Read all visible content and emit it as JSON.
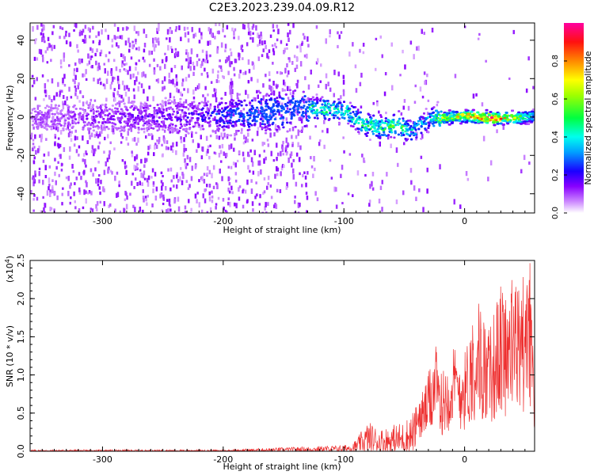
{
  "figure": {
    "title": "C2E3.2023.239.04.09.R12"
  },
  "chart_data": [
    {
      "type": "heatmap",
      "xlabel": "Height of straight line (km)",
      "ylabel": "Frequency (Hz)",
      "xlim": [
        -360,
        58
      ],
      "ylim": [
        -50,
        49
      ],
      "xticks": [
        -300,
        -200,
        -100,
        0
      ],
      "yticks": [
        -40,
        -20,
        0,
        20,
        40
      ],
      "grid": false,
      "description_of_ridge": [
        {
          "x": -360,
          "freq": 0,
          "amp": 0.1
        },
        {
          "x": -220,
          "freq": 1,
          "amp": 0.2
        },
        {
          "x": -160,
          "freq": 3,
          "amp": 0.45
        },
        {
          "x": -125,
          "freq": 5,
          "amp": 0.5
        },
        {
          "x": -100,
          "freq": 4,
          "amp": 0.45
        },
        {
          "x": -85,
          "freq": -3,
          "amp": 0.5
        },
        {
          "x": -70,
          "freq": -5,
          "amp": 0.5
        },
        {
          "x": -55,
          "freq": -4,
          "amp": 0.55
        },
        {
          "x": -45,
          "freq": -7,
          "amp": 0.4
        },
        {
          "x": -30,
          "freq": 0,
          "amp": 0.35
        },
        {
          "x": -20,
          "freq": 0,
          "amp": 0.65
        },
        {
          "x": 0,
          "freq": 1,
          "amp": 0.8
        },
        {
          "x": 20,
          "freq": 0,
          "amp": 0.95
        },
        {
          "x": 45,
          "freq": 0,
          "amp": 0.6
        },
        {
          "x": 58,
          "freq": 1,
          "amp": 0.4
        }
      ]
    },
    {
      "type": "colorbar",
      "label": "Normalized spectral amplitude",
      "range": [
        0.0,
        1.0
      ],
      "ticks": [
        0.0,
        0.2,
        0.4,
        0.6,
        0.8
      ],
      "tick_labels": [
        "0.0",
        "0.2",
        "0.4",
        "0.6",
        "0.8"
      ],
      "colors": [
        "#ffffff",
        "#9a00ff",
        "#0000ff",
        "#00ffff",
        "#00ff00",
        "#ffff00",
        "#ff9900",
        "#ff0000",
        "#ff00aa"
      ]
    },
    {
      "type": "line",
      "xlabel": "Height of straight line (km)",
      "ylabel": "SNR (10 * v/v)",
      "y_multiplier": "(x10",
      "y_multiplier_exp": "4",
      "y_multiplier_close": ")",
      "xlim": [
        -360,
        58
      ],
      "ylim": [
        0,
        2.5
      ],
      "xticks": [
        -300,
        -200,
        -100,
        0
      ],
      "yticks": [
        0.0,
        0.5,
        1.0,
        1.5,
        2.0,
        2.5
      ],
      "ytick_labels": [
        "0.0",
        "0.5",
        "1.0",
        "1.5",
        "2.0",
        "2.5"
      ],
      "series": [
        {
          "color": "#ee3030",
          "envelope": [
            {
              "x": -360,
              "max": 0.02
            },
            {
              "x": -200,
              "max": 0.02
            },
            {
              "x": -150,
              "max": 0.05
            },
            {
              "x": -100,
              "max": 0.08
            },
            {
              "x": -90,
              "max": 0.15
            },
            {
              "x": -80,
              "max": 0.4
            },
            {
              "x": -70,
              "max": 0.3
            },
            {
              "x": -50,
              "max": 0.4
            },
            {
              "x": -40,
              "max": 0.6
            },
            {
              "x": -30,
              "max": 1.0
            },
            {
              "x": -25,
              "max": 1.5
            },
            {
              "x": -20,
              "max": 1.0
            },
            {
              "x": -10,
              "max": 1.4
            },
            {
              "x": 0,
              "max": 1.3
            },
            {
              "x": 10,
              "max": 2.1
            },
            {
              "x": 20,
              "max": 1.6
            },
            {
              "x": 30,
              "max": 2.2
            },
            {
              "x": 45,
              "max": 2.3
            },
            {
              "x": 55,
              "max": 2.5
            },
            {
              "x": 58,
              "max": 0.6
            }
          ]
        }
      ]
    }
  ]
}
